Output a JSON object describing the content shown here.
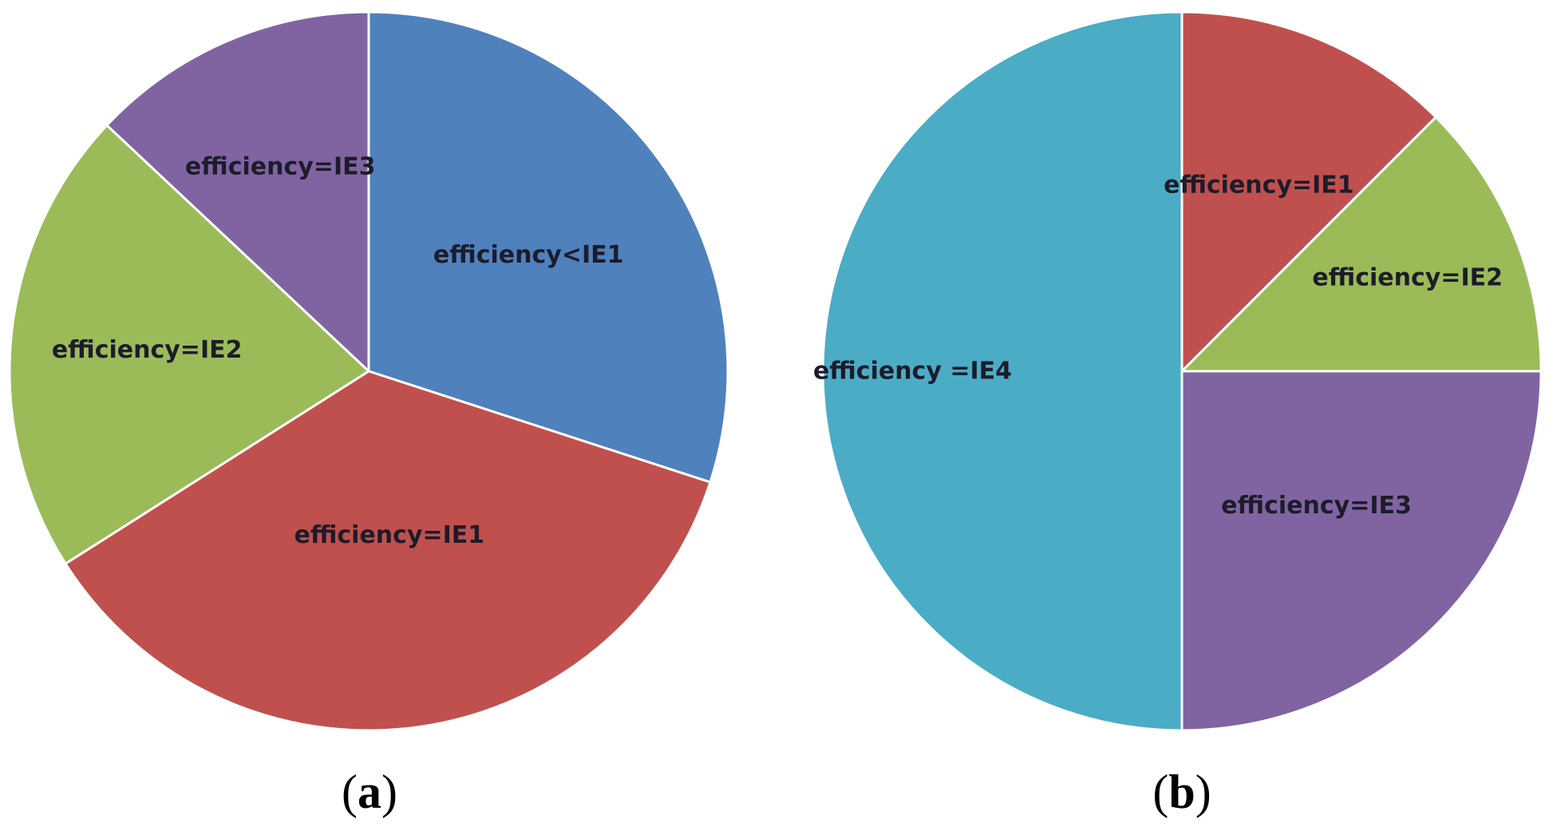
{
  "chart_data": [
    {
      "type": "pie",
      "panel": "(a)",
      "caption": {
        "open": "(",
        "letter": "a",
        "close": ")"
      },
      "start": "12 o'clock",
      "direction": "clockwise",
      "slices": [
        {
          "label": "efficiency<IE1",
          "value": 30,
          "color": "#4f81bd"
        },
        {
          "label": "efficiency=IE1",
          "value": 36,
          "color": "#c0504d"
        },
        {
          "label": "efficiency=IE2",
          "value": 21,
          "color": "#9bbb59"
        },
        {
          "label": "efficiency=IE3",
          "value": 13,
          "color": "#8064a2"
        }
      ]
    },
    {
      "type": "pie",
      "panel": "(b)",
      "caption": {
        "open": "(",
        "letter": "b",
        "close": ")"
      },
      "start": "12 o'clock",
      "direction": "clockwise",
      "slices": [
        {
          "label": "efficiency=IE1",
          "value": 12.5,
          "color": "#c0504d"
        },
        {
          "label": "efficiency=IE2",
          "value": 12.5,
          "color": "#9bbb59"
        },
        {
          "label": "efficiency=IE3",
          "value": 25,
          "color": "#8064a2"
        },
        {
          "label": "efficiency =IE4",
          "value": 50,
          "color": "#4bacc6"
        }
      ]
    }
  ]
}
